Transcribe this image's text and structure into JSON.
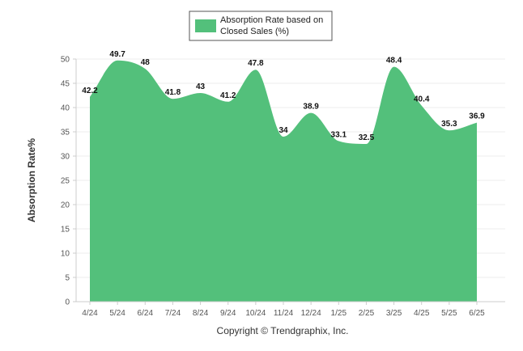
{
  "chart_data": {
    "type": "area",
    "categories": [
      "4/24",
      "5/24",
      "6/24",
      "7/24",
      "8/24",
      "9/24",
      "10/24",
      "11/24",
      "12/24",
      "1/25",
      "2/25",
      "3/25",
      "4/25",
      "5/25",
      "6/25"
    ],
    "series": [
      {
        "name": "Absorption Rate based on Closed Sales (%)",
        "values": [
          42.2,
          49.7,
          48,
          41.8,
          43,
          41.2,
          47.8,
          34,
          38.9,
          33.1,
          32.5,
          48.4,
          40.4,
          35.3,
          36.9
        ],
        "labels": [
          "42.2",
          "49.7",
          "48",
          "41.8",
          "43",
          "41.2",
          "47.8",
          "34",
          "38.9",
          "33.1",
          "32.5",
          "48.4",
          "40.4",
          "35.3",
          "36.9"
        ]
      }
    ],
    "legend": {
      "line1": "Absorption Rate based on",
      "line2": "Closed Sales (%)",
      "position": "top-center"
    },
    "title": "",
    "xlabel": "",
    "ylabel": "Absorption Rate%",
    "ylim": [
      0,
      50
    ],
    "yticks": [
      "0",
      "5",
      "10",
      "15",
      "20",
      "25",
      "30",
      "35",
      "40",
      "45",
      "50"
    ],
    "grid": true,
    "colors": {
      "fill": "#53c07b",
      "grid": "#eeeeee",
      "axis": "#cccccc"
    },
    "credit": "Copyright © Trendgraphix, Inc."
  }
}
